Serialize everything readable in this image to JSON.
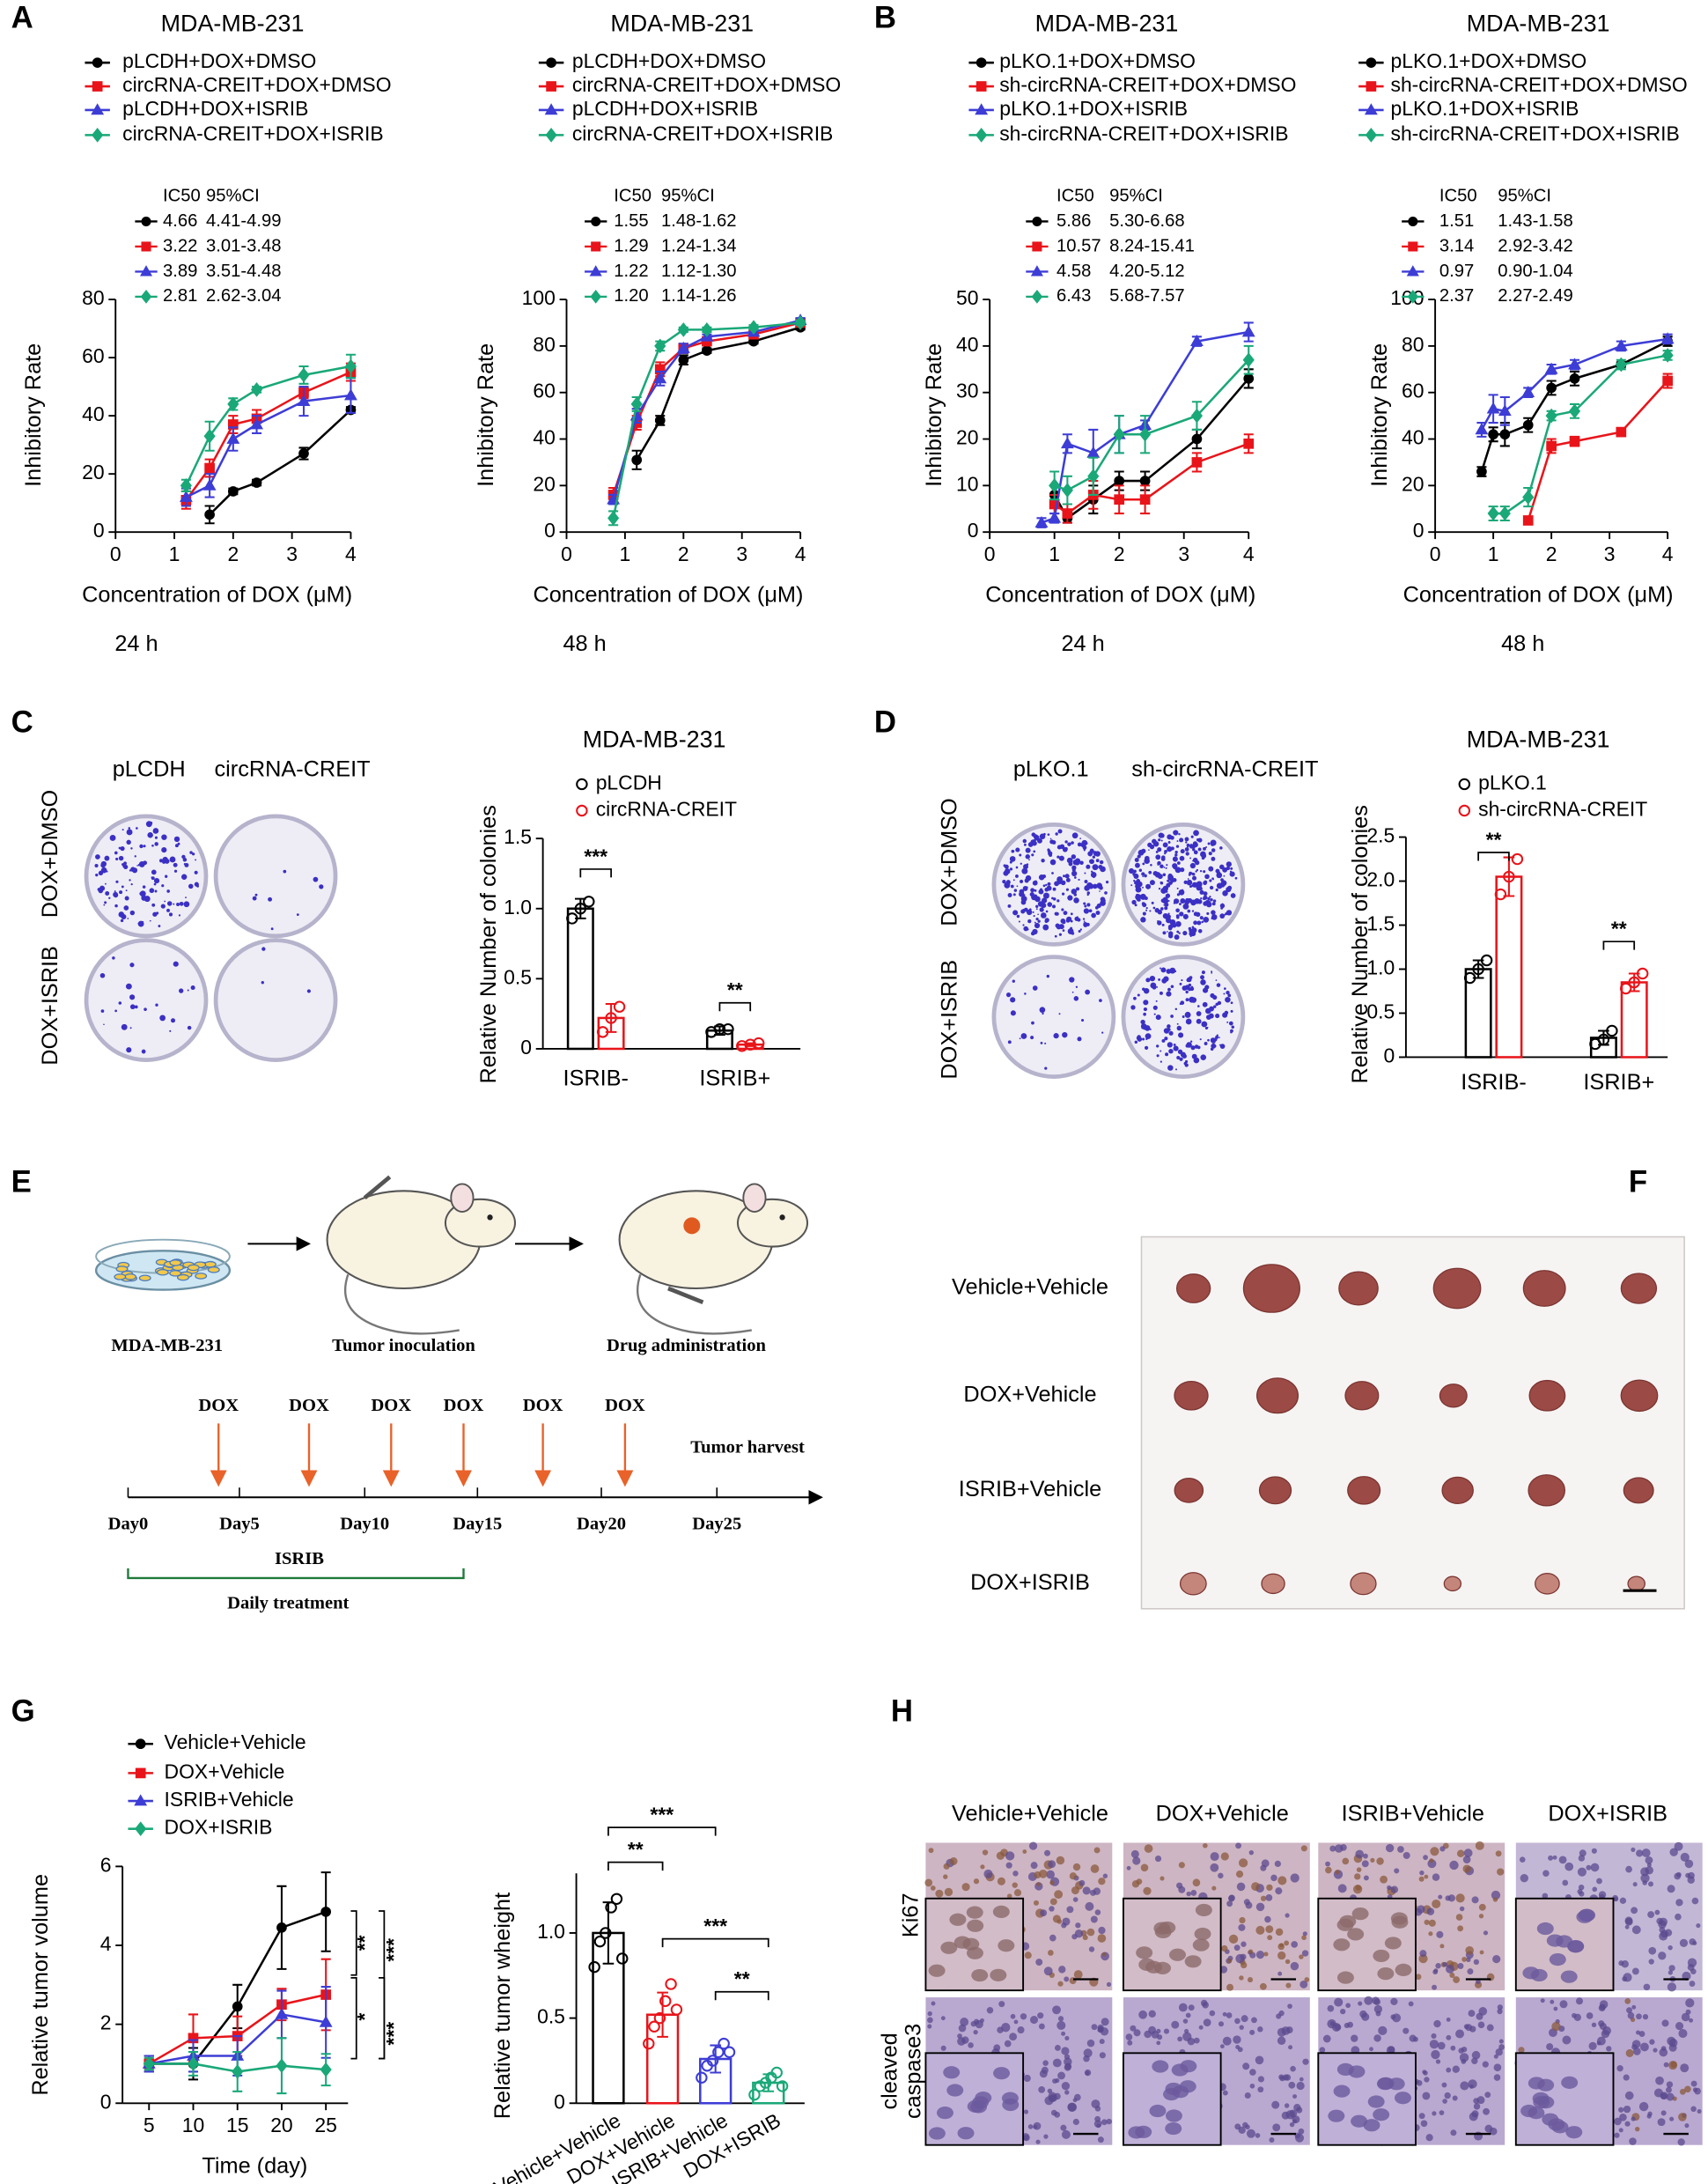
{
  "panel_labels": [
    "A",
    "B",
    "C",
    "D",
    "E",
    "F",
    "G",
    "H"
  ],
  "chart_data": [
    {
      "type": "line",
      "title": "MDA-MB-231",
      "x": [
        1.2,
        1.6,
        2.0,
        2.4,
        3.2,
        4.0
      ],
      "series": [
        {
          "name": "pLCDH+DOX+DMSO",
          "color": "#000000",
          "marker": "circle",
          "values": [
            null,
            6,
            14,
            17,
            27,
            42
          ],
          "errors": [
            null,
            3,
            1,
            1,
            2,
            1
          ]
        },
        {
          "name": "circRNA-CREIT+DOX+DMSO",
          "color": "#e8141a",
          "marker": "square",
          "values": [
            11,
            22,
            37,
            39,
            48,
            55
          ],
          "errors": [
            3,
            3,
            3,
            3,
            2,
            3
          ]
        },
        {
          "name": "pLCDH+DOX+ISRIB",
          "color": "#3d3dd6",
          "marker": "triangle",
          "values": [
            12,
            16,
            32,
            37,
            45,
            47
          ],
          "errors": [
            3,
            4,
            4,
            3,
            5,
            6
          ]
        },
        {
          "name": "circRNA-CREIT+DOX+ISRIB",
          "color": "#1aa878",
          "marker": "diamond",
          "values": [
            16,
            33,
            44,
            49,
            54,
            57
          ],
          "errors": [
            2,
            5,
            2,
            1,
            3,
            4
          ]
        }
      ],
      "xlim": [
        0,
        4
      ],
      "xticks": [
        0,
        1,
        2,
        3,
        4
      ],
      "ylim": [
        0,
        80
      ],
      "yticks": [
        0,
        20,
        40,
        60,
        80
      ],
      "xlabel": "Concentration of DOX (μM)",
      "ylabel": "Inhibitory Rate",
      "note": "24 h",
      "ic50_table": {
        "header": [
          "IC50",
          "95%CI"
        ],
        "rows": [
          [
            "4.66",
            "4.41-4.99"
          ],
          [
            "3.22",
            "3.01-3.48"
          ],
          [
            "3.89",
            "3.51-4.48"
          ],
          [
            "2.81",
            "2.62-3.04"
          ]
        ]
      }
    },
    {
      "type": "line",
      "title": "MDA-MB-231",
      "x": [
        0.8,
        1.2,
        1.6,
        2.0,
        2.4,
        3.2,
        4.0
      ],
      "series": [
        {
          "name": "pLCDH+DOX+DMSO",
          "color": "#000000",
          "marker": "circle",
          "values": [
            null,
            31,
            48,
            74,
            78,
            82,
            88
          ],
          "errors": [
            null,
            4,
            2,
            2,
            1,
            1,
            1
          ]
        },
        {
          "name": "circRNA-CREIT+DOX+DMSO",
          "color": "#e8141a",
          "marker": "square",
          "values": [
            16,
            47,
            70,
            79,
            82,
            85,
            90
          ],
          "errors": [
            3,
            3,
            3,
            2,
            1,
            1,
            1
          ]
        },
        {
          "name": "pLCDH+DOX+ISRIB",
          "color": "#3d3dd6",
          "marker": "triangle",
          "values": [
            14,
            50,
            66,
            79,
            84,
            86,
            91
          ],
          "errors": [
            2,
            3,
            3,
            2,
            1,
            1,
            1
          ]
        },
        {
          "name": "circRNA-CREIT+DOX+ISRIB",
          "color": "#1aa878",
          "marker": "diamond",
          "values": [
            6,
            55,
            80,
            87,
            87,
            88,
            90
          ],
          "errors": [
            3,
            3,
            2,
            1,
            1,
            1,
            1
          ]
        }
      ],
      "xlim": [
        0,
        4
      ],
      "xticks": [
        0,
        1,
        2,
        3,
        4
      ],
      "ylim": [
        0,
        100
      ],
      "yticks": [
        0,
        20,
        40,
        60,
        80,
        100
      ],
      "xlabel": "Concentration of DOX (μM)",
      "ylabel": "Inhibitory Rate",
      "note": "48 h",
      "ic50_table": {
        "header": [
          "IC50",
          "95%CI"
        ],
        "rows": [
          [
            "1.55",
            "1.48-1.62"
          ],
          [
            "1.29",
            "1.24-1.34"
          ],
          [
            "1.22",
            "1.12-1.30"
          ],
          [
            "1.20",
            "1.14-1.26"
          ]
        ]
      }
    },
    {
      "type": "line",
      "title": "MDA-MB-231",
      "x": [
        0.8,
        1.0,
        1.2,
        1.6,
        2.0,
        2.4,
        3.2,
        4.0
      ],
      "series": [
        {
          "name": "pLKO.1+DOX+DMSO",
          "color": "#000000",
          "marker": "circle",
          "values": [
            null,
            8,
            3,
            7,
            11,
            11,
            20,
            33
          ],
          "errors": [
            null,
            2,
            1,
            3,
            2,
            2,
            2,
            2
          ]
        },
        {
          "name": "sh-circRNA-CREIT+DOX+DMSO",
          "color": "#e8141a",
          "marker": "square",
          "values": [
            null,
            6,
            4,
            8,
            7,
            7,
            15,
            19
          ],
          "errors": [
            null,
            2,
            2,
            3,
            3,
            3,
            2,
            2
          ]
        },
        {
          "name": "pLKO.1+DOX+ISRIB",
          "color": "#3d3dd6",
          "marker": "triangle",
          "values": [
            2,
            3,
            19,
            17,
            21,
            23,
            41,
            43
          ],
          "errors": [
            1,
            1,
            2,
            5,
            4,
            1,
            1,
            2
          ]
        },
        {
          "name": "sh-circRNA-CREIT+DOX+ISRIB",
          "color": "#1aa878",
          "marker": "diamond",
          "values": [
            null,
            10,
            9,
            12,
            21,
            21,
            25,
            37
          ],
          "errors": [
            null,
            3,
            3,
            4,
            4,
            4,
            3,
            3
          ]
        }
      ],
      "xlim": [
        0,
        4
      ],
      "xticks": [
        0,
        1,
        2,
        3,
        4
      ],
      "ylim": [
        0,
        50
      ],
      "yticks": [
        0,
        10,
        20,
        30,
        40,
        50
      ],
      "xlabel": "Concentration of DOX (μM)",
      "ylabel": "Inhibitory Rate",
      "note": "24 h",
      "ic50_table": {
        "header": [
          "IC50",
          "95%CI"
        ],
        "rows": [
          [
            "5.86",
            "5.30-6.68"
          ],
          [
            "10.57",
            "8.24-15.41"
          ],
          [
            "4.58",
            "4.20-5.12"
          ],
          [
            "6.43",
            "5.68-7.57"
          ]
        ]
      }
    },
    {
      "type": "line",
      "title": "MDA-MB-231",
      "x": [
        0.8,
        1.0,
        1.2,
        1.6,
        2.0,
        2.4,
        3.2,
        4.0
      ],
      "series": [
        {
          "name": "pLKO.1+DOX+DMSO",
          "color": "#000000",
          "marker": "circle",
          "values": [
            26,
            42,
            42,
            46,
            62,
            66,
            72,
            82
          ],
          "errors": [
            2,
            3,
            5,
            3,
            3,
            3,
            1,
            2
          ]
        },
        {
          "name": "sh-circRNA-CREIT+DOX+DMSO",
          "color": "#e8141a",
          "marker": "square",
          "values": [
            null,
            null,
            null,
            5,
            37,
            39,
            43,
            65
          ],
          "errors": [
            null,
            null,
            null,
            1,
            3,
            2,
            1,
            3
          ]
        },
        {
          "name": "pLKO.1+DOX+ISRIB",
          "color": "#3d3dd6",
          "marker": "triangle",
          "values": [
            44,
            53,
            52,
            60,
            70,
            72,
            80,
            83
          ],
          "errors": [
            3,
            6,
            6,
            2,
            2,
            2,
            2,
            2
          ]
        },
        {
          "name": "sh-circRNA-CREIT+DOX+ISRIB",
          "color": "#1aa878",
          "marker": "diamond",
          "values": [
            null,
            8,
            8,
            15,
            50,
            52,
            72,
            76
          ],
          "errors": [
            null,
            3,
            3,
            4,
            2,
            3,
            2,
            2
          ]
        }
      ],
      "xlim": [
        0,
        4
      ],
      "xticks": [
        0,
        1,
        2,
        3,
        4
      ],
      "ylim": [
        0,
        100
      ],
      "yticks": [
        0,
        20,
        40,
        60,
        80,
        100
      ],
      "xlabel": "Concentration of DOX (μM)",
      "ylabel": "Inhibitory Rate",
      "note": "48 h",
      "ic50_table": {
        "header": [
          "IC50",
          "95%CI"
        ],
        "rows": [
          [
            "1.51",
            "1.43-1.58"
          ],
          [
            "3.14",
            "2.92-3.42"
          ],
          [
            "0.97",
            "0.90-1.04"
          ],
          [
            "2.37",
            "2.27-2.49"
          ]
        ]
      }
    },
    {
      "type": "bar",
      "title": "MDA-MB-231",
      "categories": [
        "ISRIB-",
        "ISRIB+"
      ],
      "series": [
        {
          "name": "pLCDH",
          "color": "#000000",
          "values": [
            1,
            0.13
          ],
          "errors": [
            0.07,
            0.03
          ],
          "points": [
            [
              0.93,
              1,
              1.05
            ],
            [
              0.12,
              0.14,
              0.14
            ]
          ]
        },
        {
          "name": "circRNA-CREIT",
          "color": "#e8141a",
          "values": [
            0.22,
            0.03
          ],
          "errors": [
            0.1,
            0.01
          ],
          "points": [
            [
              0.12,
              0.22,
              0.3
            ],
            [
              0.02,
              0.03,
              0.04
            ]
          ]
        }
      ],
      "ylim": [
        0,
        1.5
      ],
      "yticks": [
        0,
        0.5,
        {
          "value": 1,
          "label": "1.0"
        },
        1.5
      ],
      "ylabel": "Relative Number of colonies",
      "annotations": [
        "***",
        "**"
      ]
    },
    {
      "type": "bar",
      "title": "MDA-MB-231",
      "categories": [
        "ISRIB-",
        "ISRIB+"
      ],
      "series": [
        {
          "name": "pLKO.1",
          "color": "#000000",
          "values": [
            1,
            0.22
          ],
          "errors": [
            0.1,
            0.08
          ],
          "points": [
            [
              0.9,
              1,
              1.1
            ],
            [
              0.15,
              0.2,
              0.3
            ]
          ]
        },
        {
          "name": "sh-circRNA-CREIT",
          "color": "#e8141a",
          "values": [
            2.05,
            0.85
          ],
          "errors": [
            0.22,
            0.1
          ],
          "points": [
            [
              1.85,
              2.05,
              2.25
            ],
            [
              0.78,
              0.85,
              0.95
            ]
          ]
        }
      ],
      "ylim": [
        0,
        2.5
      ],
      "yticks": [
        0,
        0.5,
        {
          "value": 1,
          "label": "1.0"
        },
        1.5,
        {
          "value": 2,
          "label": "2.0"
        },
        2.5
      ],
      "ylabel": "Relative Number of colonies",
      "annotations": [
        "**",
        "**"
      ]
    },
    {
      "type": "line",
      "x": [
        5,
        10,
        15,
        20,
        25
      ],
      "series": [
        {
          "name": "Vehicle+Vehicle",
          "color": "#000000",
          "marker": "circle",
          "values": [
            1,
            1,
            2.45,
            4.45,
            4.85
          ],
          "errors": [
            0.2,
            0.4,
            0.55,
            1.05,
            1.0
          ]
        },
        {
          "name": "DOX+Vehicle",
          "color": "#e8141a",
          "marker": "square",
          "values": [
            1,
            1.65,
            1.7,
            2.5,
            2.75
          ],
          "errors": [
            0.2,
            0.6,
            0.5,
            0.4,
            0.9
          ]
        },
        {
          "name": "ISRIB+Vehicle",
          "color": "#3d3dd6",
          "marker": "triangle",
          "values": [
            1,
            1.2,
            1.2,
            2.25,
            2.05
          ],
          "errors": [
            0.2,
            0.4,
            0.5,
            0.6,
            0.9
          ]
        },
        {
          "name": "DOX+ISRIB",
          "color": "#1aa878",
          "marker": "diamond",
          "values": [
            1,
            1,
            0.8,
            0.95,
            0.85
          ],
          "errors": [
            0.15,
            0.3,
            0.5,
            0.7,
            0.4
          ]
        }
      ],
      "xlim": [
        2,
        27.5
      ],
      "xticks": [
        5,
        10,
        15,
        20,
        25
      ],
      "ylim": [
        0,
        6
      ],
      "yticks": [
        0,
        2,
        4,
        6
      ],
      "xlabel": "Time (day)",
      "ylabel": "Relative tumor volume",
      "annotations": [
        "**",
        "***",
        "*",
        "***"
      ]
    },
    {
      "type": "bar",
      "categories": [
        "Vehicle+Vehicle",
        "DOX+Vehicle",
        "ISRIB+Vehicle",
        "DOX+ISRIB"
      ],
      "values": [
        1,
        0.52,
        0.26,
        0.12
      ],
      "colors": [
        "#000000",
        "#e8141a",
        "#3d3dd6",
        "#1aa878"
      ],
      "errors": [
        0.18,
        0.13,
        0.08,
        0.05
      ],
      "points": [
        [
          0.8,
          0.95,
          1,
          1.15,
          1.2,
          0.85
        ],
        [
          0.35,
          0.45,
          0.5,
          0.6,
          0.7,
          0.55
        ],
        [
          0.15,
          0.22,
          0.25,
          0.3,
          0.35,
          0.3
        ],
        [
          0.05,
          0.1,
          0.12,
          0.15,
          0.18,
          0.1
        ]
      ],
      "ylim": [
        0,
        1.35
      ],
      "yticks": [
        0,
        0.5,
        {
          "value": 1,
          "label": "1.0"
        }
      ],
      "ylabel": "Relative tumor wheight",
      "annotations": [
        "***",
        "**",
        "***",
        "**"
      ]
    }
  ],
  "colony_C": {
    "columns": [
      "pLCDH",
      "circRNA-CREIT"
    ],
    "rows": [
      "DOX+DMSO",
      "DOX+ISRIB"
    ]
  },
  "colony_D": {
    "columns": [
      "pLKO.1",
      "sh-circRNA-CREIT"
    ],
    "rows": [
      "DOX+DMSO",
      "DOX+ISRIB"
    ]
  },
  "schematic": {
    "steps": [
      "MDA-MB-231",
      "Tumor inoculation",
      "Drug administration"
    ],
    "doses": [
      "DOX",
      "DOX",
      "DOX",
      "DOX",
      "DOX",
      "DOX"
    ],
    "end_label": "Tumor harvest",
    "days": [
      "Day0",
      "Day5",
      "Day10",
      "Day15",
      "Day20",
      "Day25"
    ],
    "treatment": "ISRIB",
    "treatment_note": "Daily treatment"
  },
  "tumor_photo": {
    "rows": [
      "Vehicle+Vehicle",
      "DOX+Vehicle",
      "ISRIB+Vehicle",
      "DOX+ISRIB"
    ]
  },
  "ihc": {
    "columns": [
      "Vehicle+Vehicle",
      "DOX+Vehicle",
      "ISRIB+Vehicle",
      "DOX+ISRIB"
    ],
    "rows": [
      [
        "Ki67"
      ],
      [
        "cleaved",
        "caspase3"
      ]
    ]
  }
}
